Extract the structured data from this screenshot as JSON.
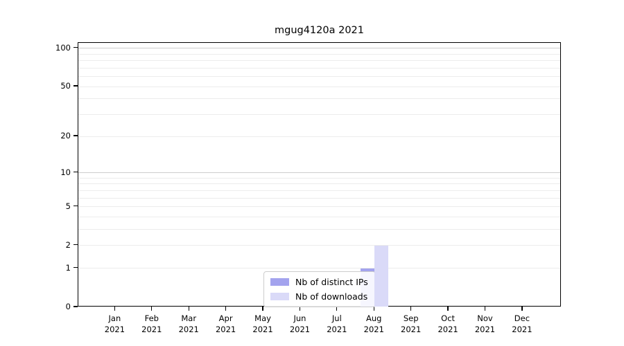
{
  "chart_data": {
    "type": "bar",
    "title": "mgug4120a 2021",
    "categories": [
      "Jan",
      "Feb",
      "Mar",
      "Apr",
      "May",
      "Jun",
      "Jul",
      "Aug",
      "Sep",
      "Oct",
      "Nov",
      "Dec"
    ],
    "year": "2021",
    "series": [
      {
        "name": "Nb of distinct IPs",
        "color": "#a3a3ee",
        "values": [
          0,
          0,
          0,
          0,
          0,
          0,
          0,
          1,
          0,
          0,
          0,
          0
        ]
      },
      {
        "name": "Nb of downloads",
        "color": "#dadaf8",
        "values": [
          0,
          0,
          0,
          0,
          0,
          0,
          0,
          2,
          0,
          0,
          0,
          0
        ]
      }
    ],
    "yticks": [
      0,
      1,
      2,
      5,
      10,
      20,
      50,
      100
    ],
    "ylim": [
      0,
      110
    ],
    "scale": "log10(1+x)",
    "xlabel": "",
    "ylabel": "",
    "grid": "horizontal-only",
    "grid_color_minor": "#ececec",
    "grid_color_major": "#cccccc",
    "legend_position": "bottom-center-inside",
    "axis_color": "#000000"
  }
}
